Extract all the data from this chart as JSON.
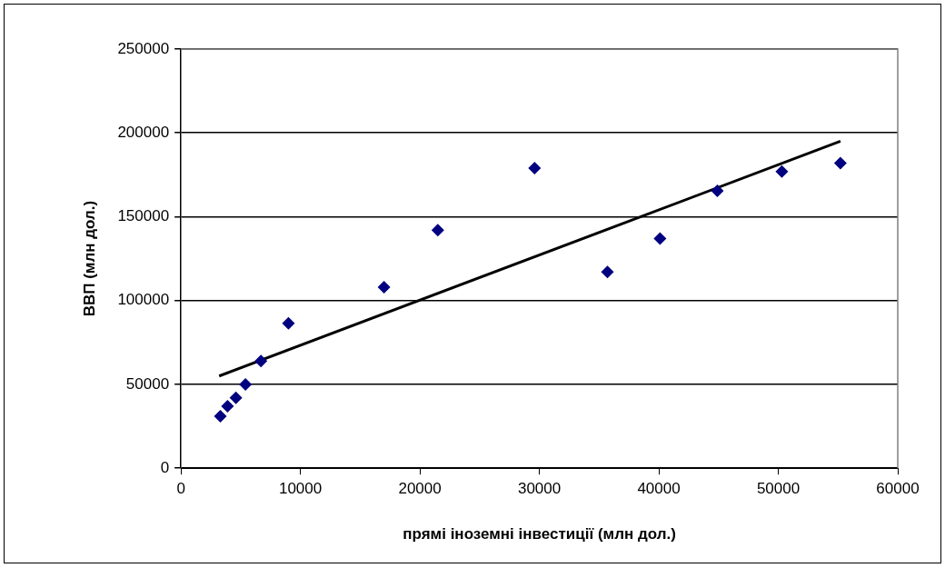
{
  "chart_data": {
    "type": "scatter",
    "xlabel": "прямі іноземні інвестиції (млн дол.)",
    "ylabel": "ВВП (млн дол.)",
    "xlim": [
      0,
      60000
    ],
    "xticks": [
      0,
      10000,
      20000,
      30000,
      40000,
      50000,
      60000
    ],
    "ylim": [
      0,
      250000
    ],
    "yticks": [
      0,
      50000,
      100000,
      150000,
      200000,
      250000
    ],
    "grid": "y",
    "legend": false,
    "marker": "diamond",
    "series": [
      {
        "color": "#000080",
        "x": [
          3300,
          3900,
          4600,
          5400,
          6700,
          9000,
          17000,
          21500,
          29600,
          35700,
          40100,
          44900,
          50300,
          55200
        ],
        "values": [
          31000,
          37000,
          42000,
          50000,
          64000,
          86500,
          108000,
          142000,
          179000,
          117000,
          137000,
          165500,
          177000,
          182000
        ]
      },
      {
        "type": "line",
        "color": "#000000",
        "marker": "none",
        "line_style": "solid",
        "x": [
          3200,
          55200
        ],
        "values": [
          55000,
          195000
        ]
      }
    ]
  }
}
